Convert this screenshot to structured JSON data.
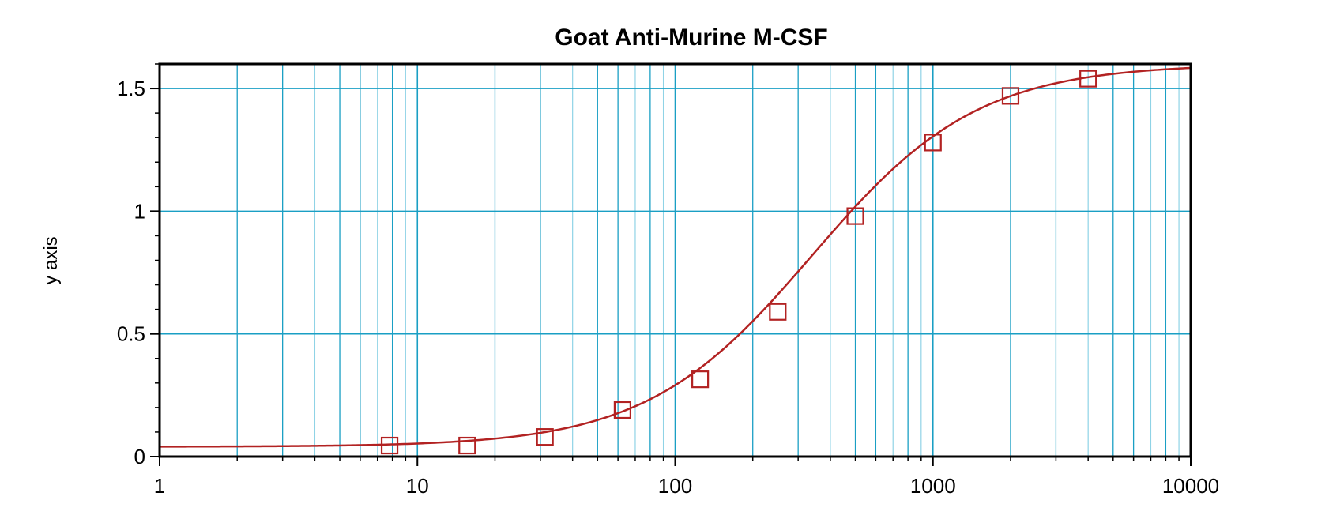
{
  "chart_data": {
    "type": "scatter",
    "title": "Goat Anti-Murine M-CSF",
    "xlabel": "",
    "ylabel": "y axis",
    "x_scale": "log",
    "xlim": [
      1,
      10000
    ],
    "ylim": [
      0,
      1.6
    ],
    "x_ticks": [
      {
        "value": 1,
        "label": "1"
      },
      {
        "value": 10,
        "label": "10"
      },
      {
        "value": 100,
        "label": "100"
      },
      {
        "value": 1000,
        "label": "1000"
      },
      {
        "value": 10000,
        "label": "10000"
      }
    ],
    "y_ticks": [
      {
        "value": 0,
        "label": "0"
      },
      {
        "value": 0.5,
        "label": "0.5"
      },
      {
        "value": 1,
        "label": "1"
      },
      {
        "value": 1.5,
        "label": "1.5"
      }
    ],
    "grid": true,
    "series": [
      {
        "marker": "square-open",
        "color": "#b22222",
        "x": [
          7.8,
          15.6,
          31.25,
          62.5,
          125,
          250,
          500,
          1000,
          2000,
          4000
        ],
        "y": [
          0.045,
          0.045,
          0.08,
          0.19,
          0.315,
          0.59,
          0.98,
          1.28,
          1.47,
          1.54
        ]
      }
    ],
    "fit_curve": {
      "type": "4PL",
      "color": "#b22222",
      "bottom": 0.04,
      "top": 1.6,
      "ec50": 340,
      "hill": 1.35
    },
    "colors": {
      "grid_major": "#1a9fc4",
      "grid_minor": "#8fd3e6",
      "axis": "#000000",
      "curve": "#b22222"
    }
  }
}
